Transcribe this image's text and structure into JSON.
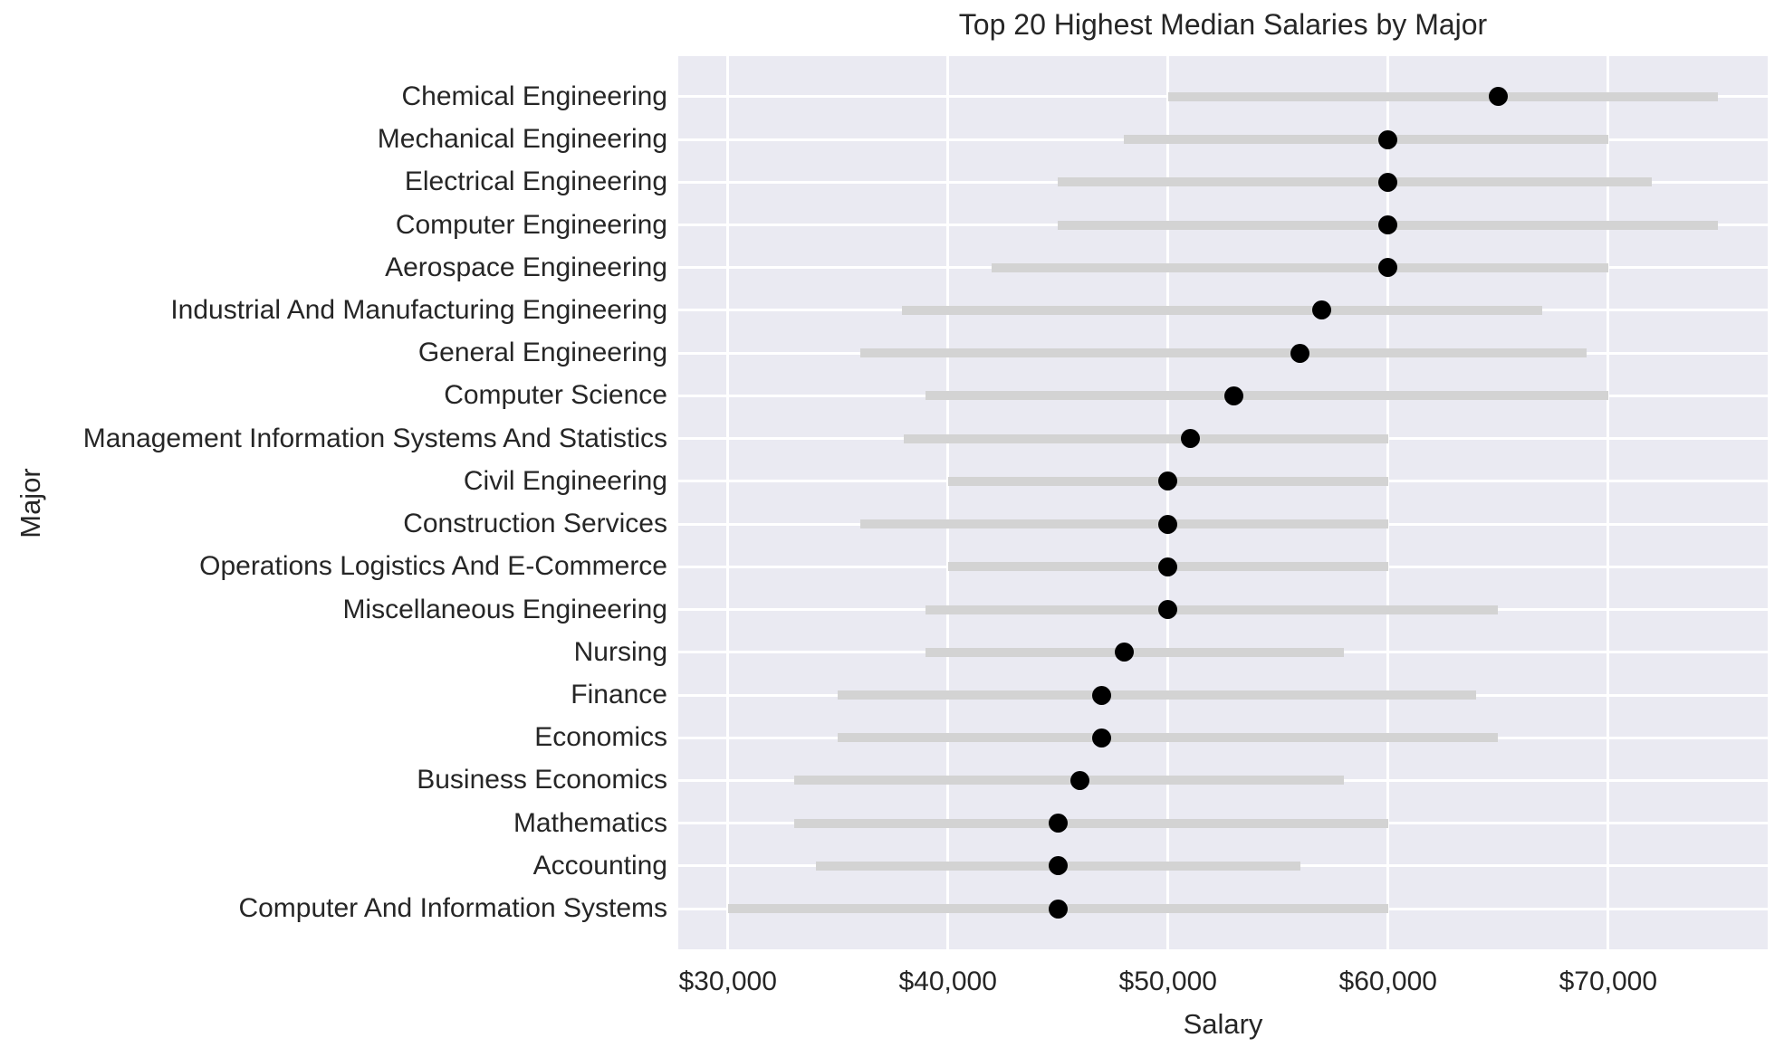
{
  "chart_data": {
    "type": "scatter",
    "variant": "dot-with-range-line",
    "title": "Top 20 Highest Median Salaries by Major",
    "xlabel": "Salary",
    "ylabel": "Major",
    "xlim": [
      27750,
      77250
    ],
    "grid": true,
    "legend": false,
    "colors": {
      "figure_background": "#ffffff",
      "axes_background": "#eaeaf2",
      "gridline": "#ffffff",
      "range_line": "#d3d3d3",
      "median_dot": "#000000",
      "text": "#262626"
    },
    "xticks": [
      {
        "value": 30000,
        "label": "$30,000"
      },
      {
        "value": 40000,
        "label": "$40,000"
      },
      {
        "value": 50000,
        "label": "$50,000"
      },
      {
        "value": 60000,
        "label": "$60,000"
      },
      {
        "value": 70000,
        "label": "$70,000"
      }
    ],
    "rows": [
      {
        "major": "Chemical Engineering",
        "median": 65000,
        "p25": 50000,
        "p75": 75000
      },
      {
        "major": "Mechanical Engineering",
        "median": 60000,
        "p25": 48000,
        "p75": 70000
      },
      {
        "major": "Electrical Engineering",
        "median": 60000,
        "p25": 45000,
        "p75": 72000
      },
      {
        "major": "Computer Engineering",
        "median": 60000,
        "p25": 45000,
        "p75": 75000
      },
      {
        "major": "Aerospace Engineering",
        "median": 60000,
        "p25": 42000,
        "p75": 70000
      },
      {
        "major": "Industrial And Manufacturing Engineering",
        "median": 57000,
        "p25": 37900,
        "p75": 67000
      },
      {
        "major": "General Engineering",
        "median": 56000,
        "p25": 36000,
        "p75": 69000
      },
      {
        "major": "Computer Science",
        "median": 53000,
        "p25": 39000,
        "p75": 70000
      },
      {
        "major": "Management Information Systems And Statistics",
        "median": 51000,
        "p25": 38000,
        "p75": 60000
      },
      {
        "major": "Civil Engineering",
        "median": 50000,
        "p25": 40000,
        "p75": 60000
      },
      {
        "major": "Construction Services",
        "median": 50000,
        "p25": 36000,
        "p75": 60000
      },
      {
        "major": "Operations Logistics And E-Commerce",
        "median": 50000,
        "p25": 40000,
        "p75": 60000
      },
      {
        "major": "Miscellaneous Engineering",
        "median": 50000,
        "p25": 39000,
        "p75": 65000
      },
      {
        "major": "Nursing",
        "median": 48000,
        "p25": 39000,
        "p75": 58000
      },
      {
        "major": "Finance",
        "median": 47000,
        "p25": 35000,
        "p75": 64000
      },
      {
        "major": "Economics",
        "median": 47000,
        "p25": 35000,
        "p75": 65000
      },
      {
        "major": "Business Economics",
        "median": 46000,
        "p25": 33000,
        "p75": 58000
      },
      {
        "major": "Mathematics",
        "median": 45000,
        "p25": 33000,
        "p75": 60000
      },
      {
        "major": "Accounting",
        "median": 45000,
        "p25": 34000,
        "p75": 56000
      },
      {
        "major": "Computer And Information Systems",
        "median": 45000,
        "p25": 30000,
        "p75": 60000
      }
    ]
  }
}
